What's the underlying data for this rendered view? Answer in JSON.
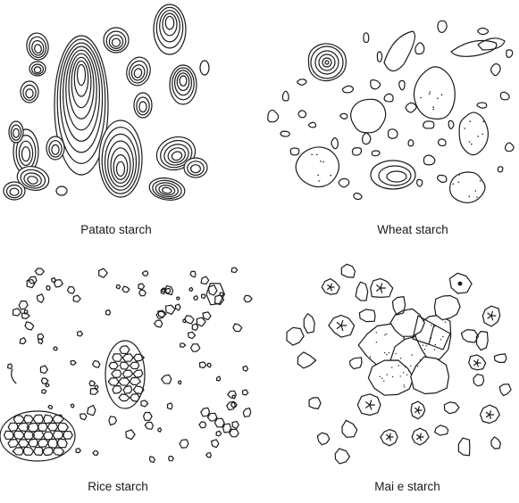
{
  "panels": [
    {
      "id": "potato",
      "caption": "Patato starch"
    },
    {
      "id": "wheat",
      "caption": "Wheat starch"
    },
    {
      "id": "rice",
      "caption": "Rice starch"
    },
    {
      "id": "maize",
      "caption": "Mai e starch"
    }
  ]
}
